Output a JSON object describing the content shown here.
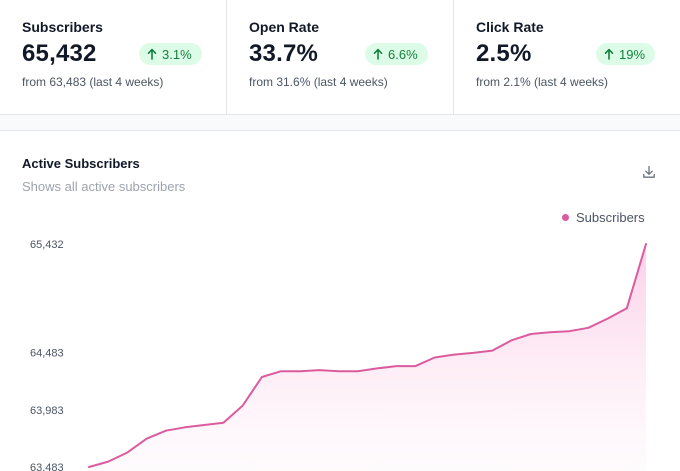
{
  "stats": [
    {
      "label": "Subscribers",
      "value": "65,432",
      "change": "3.1%",
      "sub": "from 63,483 (last 4 weeks)"
    },
    {
      "label": "Open Rate",
      "value": "33.7%",
      "change": "6.6%",
      "sub": "from 31.6% (last 4 weeks)"
    },
    {
      "label": "Click Rate",
      "value": "2.5%",
      "change": "19%",
      "sub": "from 2.1% (last 4 weeks)"
    }
  ],
  "card": {
    "title": "Active Subscribers",
    "subtitle": "Shows all active subscribers",
    "download_icon": "download-icon",
    "legend": "Subscribers"
  },
  "colors": {
    "accent": "#db5c9e",
    "badge_bg": "#dcfce7",
    "badge_text": "#15803d"
  },
  "chart_data": {
    "type": "area",
    "legend": [
      "Subscribers"
    ],
    "y_ticks": [
      "65,432",
      "64,483",
      "63,983",
      "63,483"
    ],
    "ylim": [
      63483,
      65432
    ],
    "series": [
      {
        "name": "Subscribers",
        "values": [
          63483,
          63530,
          63610,
          63730,
          63800,
          63830,
          63850,
          63870,
          64020,
          64270,
          64320,
          64320,
          64330,
          64320,
          64320,
          64345,
          64365,
          64365,
          64440,
          64465,
          64480,
          64500,
          64590,
          64645,
          64660,
          64670,
          64700,
          64780,
          64870,
          65432
        ]
      }
    ]
  }
}
